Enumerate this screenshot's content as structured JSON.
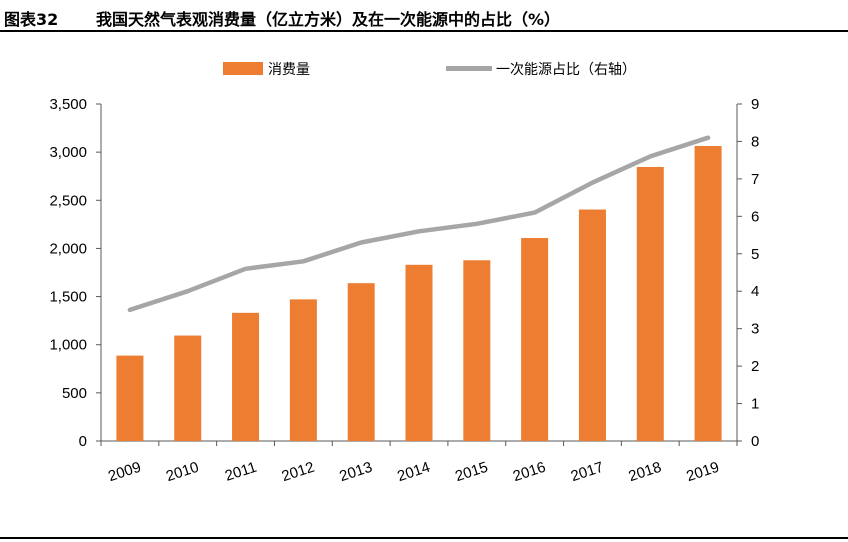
{
  "header": {
    "figure_label": "图表32",
    "title": "我国天然气表观消费量（亿立方米）及在一次能源中的占比（%）"
  },
  "chart_data": {
    "type": "bar",
    "categories": [
      "2009",
      "2010",
      "2011",
      "2012",
      "2013",
      "2014",
      "2015",
      "2016",
      "2017",
      "2018",
      "2019"
    ],
    "series": [
      {
        "name": "消费量",
        "type": "bar",
        "axis": "left",
        "color": "#ED7D31",
        "values": [
          887,
          1095,
          1331,
          1471,
          1639,
          1830,
          1877,
          2108,
          2404,
          2846,
          3064
        ]
      },
      {
        "name": "一次能源占比（右轴）",
        "type": "line",
        "axis": "right",
        "color": "#A6A6A6",
        "values": [
          3.5,
          4.0,
          4.6,
          4.8,
          5.3,
          5.6,
          5.8,
          6.1,
          6.9,
          7.6,
          8.1
        ]
      }
    ],
    "y_left": {
      "min": 0,
      "max": 3500,
      "ticks": [
        "0",
        "500",
        "1,000",
        "1,500",
        "2,000",
        "2,500",
        "3,000",
        "3,500"
      ]
    },
    "y_right": {
      "min": 0,
      "max": 9,
      "ticks": [
        "0",
        "1",
        "2",
        "3",
        "4",
        "5",
        "6",
        "7",
        "8",
        "9"
      ]
    },
    "grid": false,
    "legend_position": "top"
  }
}
